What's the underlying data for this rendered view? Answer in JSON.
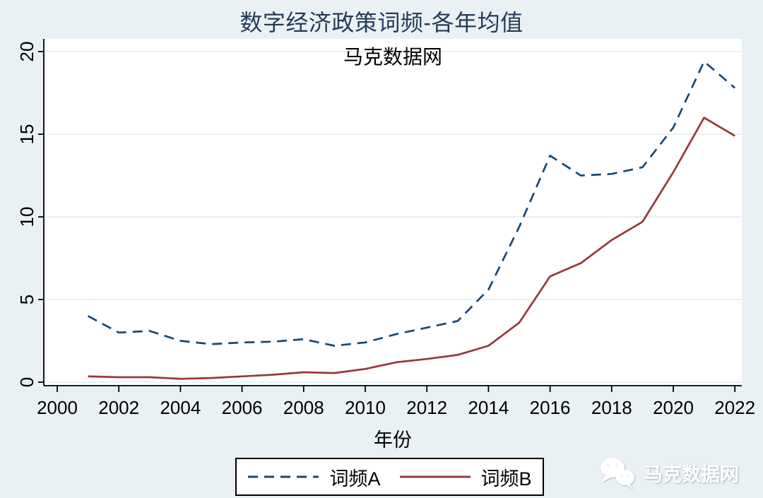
{
  "page": {
    "background": "#eaf1f5"
  },
  "chart_data": {
    "type": "line",
    "title": "数字经济政策词频-各年均值",
    "inner_watermark": "马克数据网",
    "xlabel": "年份",
    "ylabel": "",
    "x": [
      2001,
      2002,
      2003,
      2004,
      2005,
      2006,
      2007,
      2008,
      2009,
      2010,
      2011,
      2012,
      2013,
      2014,
      2015,
      2016,
      2017,
      2018,
      2019,
      2020,
      2021,
      2022
    ],
    "series": [
      {
        "name": "词频A",
        "color": "#1a476f",
        "style": "dashed",
        "values": [
          4.0,
          3.0,
          3.1,
          2.5,
          2.3,
          2.4,
          2.45,
          2.6,
          2.2,
          2.4,
          2.9,
          3.3,
          3.7,
          5.6,
          9.4,
          13.7,
          12.5,
          12.6,
          13.0,
          15.4,
          19.4,
          17.8
        ]
      },
      {
        "name": "词频B",
        "color": "#97383d",
        "style": "solid",
        "values": [
          0.35,
          0.3,
          0.3,
          0.2,
          0.25,
          0.35,
          0.45,
          0.6,
          0.55,
          0.8,
          1.2,
          1.4,
          1.65,
          2.2,
          3.6,
          6.4,
          7.2,
          8.6,
          9.7,
          12.7,
          16.0,
          14.9
        ]
      }
    ],
    "xlim": [
      1999.6,
      2022.2
    ],
    "ylim": [
      0,
      20
    ],
    "x_ticks": [
      2000,
      2002,
      2004,
      2006,
      2008,
      2010,
      2012,
      2014,
      2016,
      2018,
      2020,
      2022
    ],
    "y_ticks": [
      0,
      5,
      10,
      15,
      20
    ],
    "grid": "horizontal",
    "legend_position": "bottom-center"
  },
  "brand": {
    "label": "马克数据网",
    "icon": "wechat-icon",
    "color": "#ffffff"
  },
  "style_colors": {
    "plot_background": "#ffffff",
    "grid": "#e1edf3",
    "axis": "#000000",
    "title": "#223c58"
  }
}
